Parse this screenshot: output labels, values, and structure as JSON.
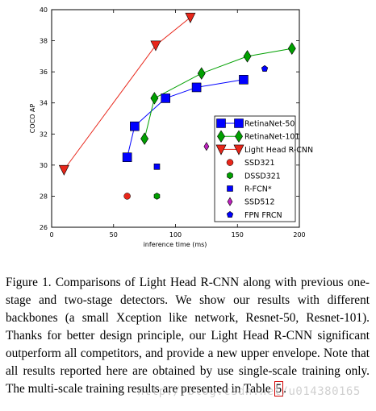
{
  "chart_data": {
    "type": "scatter",
    "xlabel": "inference time (ms)",
    "ylabel": "COCO AP",
    "xlim": [
      0,
      200
    ],
    "ylim": [
      26,
      40
    ],
    "xticks": [
      "0",
      "50",
      "100",
      "150",
      "200"
    ],
    "yticks": [
      "26",
      "28",
      "30",
      "32",
      "34",
      "36",
      "38",
      "40"
    ],
    "grid": false,
    "legend_position": "lower-right",
    "series": [
      {
        "name": "RetinaNet-50",
        "marker": "square",
        "line": true,
        "color": "#0000ff",
        "points": [
          [
            61,
            30.5
          ],
          [
            67,
            32.5
          ],
          [
            92,
            34.3
          ],
          [
            117,
            35.0
          ],
          [
            155,
            35.5
          ]
        ]
      },
      {
        "name": "RetinaNet-101",
        "marker": "diamond",
        "line": true,
        "color": "#00a000",
        "points": [
          [
            75,
            31.7
          ],
          [
            83,
            34.3
          ],
          [
            121,
            35.9
          ],
          [
            158,
            37.0
          ],
          [
            194,
            37.5
          ]
        ]
      },
      {
        "name": "Light Head R-CNN",
        "marker": "triangle-down",
        "line": true,
        "color": "#e8261a",
        "points": [
          [
            10,
            29.7
          ],
          [
            84,
            37.7
          ],
          [
            112,
            39.5
          ]
        ]
      },
      {
        "name": "SSD321",
        "marker": "circle",
        "line": false,
        "color": "#e8261a",
        "points": [
          [
            61,
            28.0
          ]
        ]
      },
      {
        "name": "DSSD321",
        "marker": "hexagon",
        "line": false,
        "color": "#00a000",
        "points": [
          [
            85,
            28.0
          ]
        ]
      },
      {
        "name": "R-FCN*",
        "marker": "square-small",
        "line": false,
        "color": "#0000ff",
        "points": [
          [
            85,
            29.9
          ]
        ]
      },
      {
        "name": "SSD512",
        "marker": "diamond-small",
        "line": false,
        "color": "#c020c0",
        "points": [
          [
            125,
            31.2
          ]
        ]
      },
      {
        "name": "FPN FRCN",
        "marker": "pentagon",
        "line": false,
        "color": "#0000ff",
        "points": [
          [
            172,
            36.2
          ]
        ]
      }
    ]
  },
  "caption": {
    "part1": "Figure 1. Comparisons of Light Head R-CNN along with previous one-stage and two-stage detectors. We show our results with different backbones (a small Xception like network, Resnet-50, Resnet-101). Thanks for better design principle, our Light Head R-CNN significant outperform all competitors, and provide a new upper envelope. Note that all results reported here are obtained by use single-scale training only. The multi-scale training results are presented in Table ",
    "ref": "5",
    "part2": "."
  },
  "watermark": "http://blog.csdn.net/u014380165"
}
